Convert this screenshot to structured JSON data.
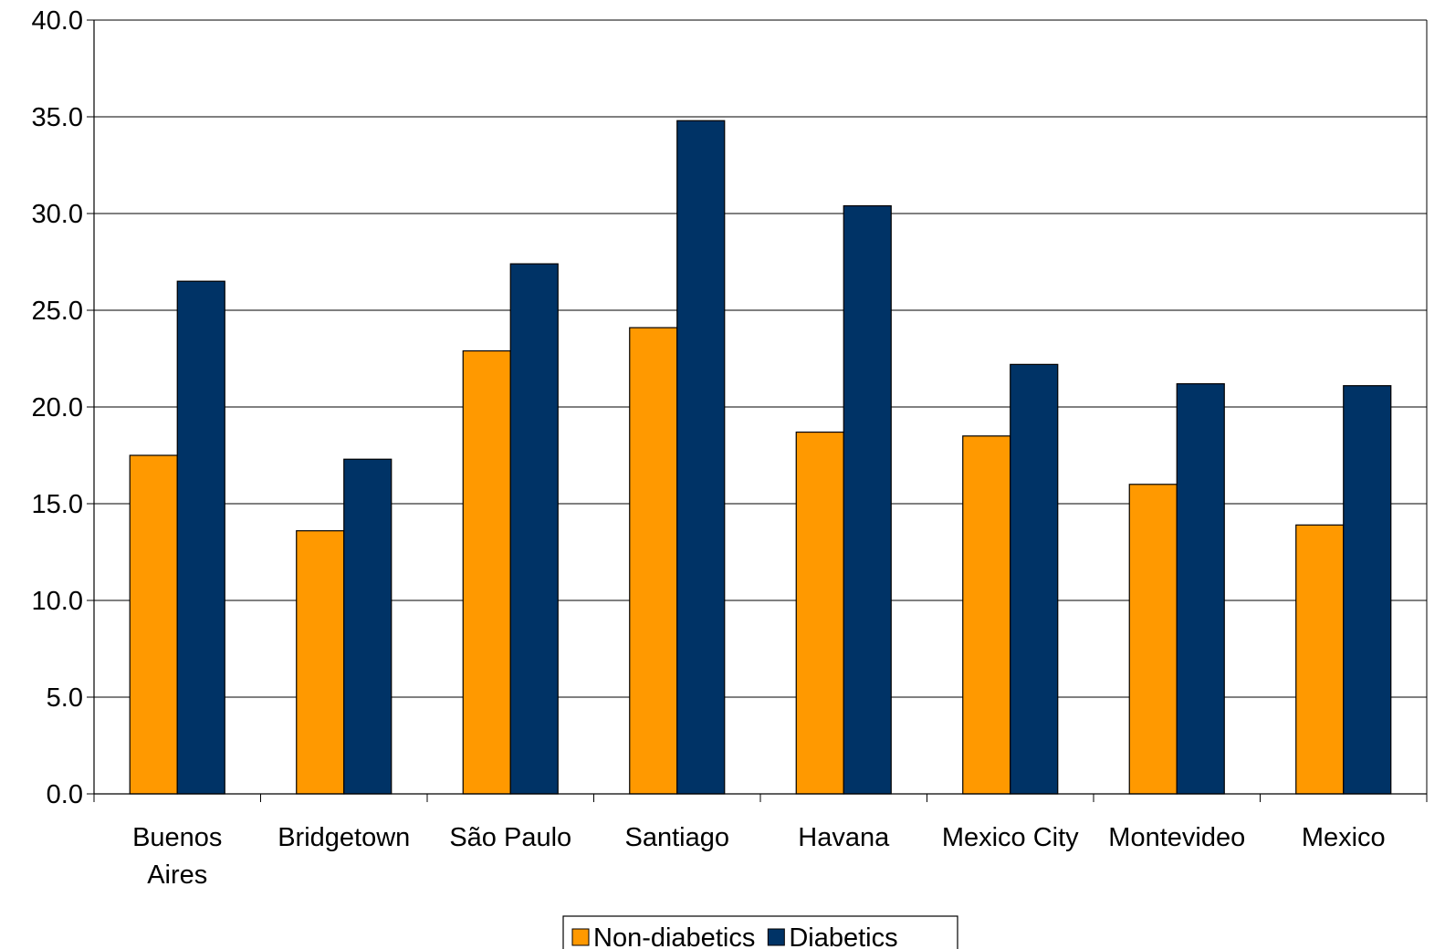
{
  "chart_data": {
    "type": "bar",
    "title": "",
    "xlabel": "",
    "ylabel": "",
    "categories": [
      [
        "Buenos",
        "Aires"
      ],
      [
        "Bridgetown"
      ],
      [
        "São Paulo"
      ],
      [
        "Santiago"
      ],
      [
        "Havana"
      ],
      [
        "Mexico City"
      ],
      [
        "Montevideo"
      ],
      [
        "Mexico"
      ]
    ],
    "series": [
      {
        "name": "Non-diabetics",
        "color": "#FF9900",
        "values": [
          17.5,
          13.6,
          22.9,
          24.1,
          18.7,
          18.5,
          16.0,
          13.9
        ]
      },
      {
        "name": "Diabetics",
        "color": "#003366",
        "values": [
          26.5,
          17.3,
          27.4,
          34.8,
          30.4,
          22.2,
          21.2,
          21.1
        ]
      }
    ],
    "ylim": [
      0,
      40
    ],
    "yticks": [
      "0.0",
      "5.0",
      "10.0",
      "15.0",
      "20.0",
      "25.0",
      "30.0",
      "35.0",
      "40.0"
    ],
    "grid": true,
    "legend_position": "bottom-center"
  }
}
